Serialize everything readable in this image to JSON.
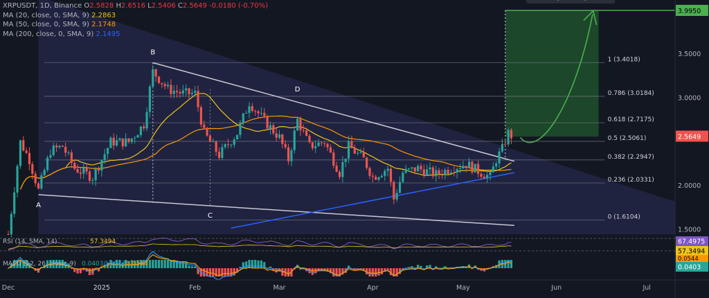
{
  "header": {
    "symbol_line": "XRPUSDT, 1D, Binance",
    "ohlc": [
      {
        "k": "O",
        "v": "2.5828"
      },
      {
        "k": "H",
        "v": "2.6516"
      },
      {
        "k": "L",
        "v": "2.5406"
      },
      {
        "k": "C",
        "v": "2.5649"
      }
    ],
    "change": "-0.0180 (-0.70%)",
    "change_color": "#f23645"
  },
  "ma": [
    {
      "label": "MA (20, close, 0, SMA, 9)",
      "value": "2.2863",
      "color": "#f0c419"
    },
    {
      "label": "MA (50, close, 0, SMA, 9)",
      "value": "2.1748",
      "color": "#ff9800"
    },
    {
      "label": "MA (200, close, 0, SMA, 9)",
      "value": "2.1495",
      "color": "#2962ff"
    }
  ],
  "measure_label": "1.3753 (53.63%) 13753",
  "colors": {
    "up": "#26a69a",
    "down": "#ef5350",
    "target": "#4caf50",
    "wedge": "#2a2e59",
    "rsi": "#7e57c2"
  },
  "chart_data": {
    "type": "candlestick",
    "y_ticks": [
      "3.9950",
      "3.5000",
      "3.0000",
      "2.5649",
      "2.0000",
      "1.5000"
    ],
    "y_tick_values": [
      3.995,
      3.5,
      3.0,
      2.5649,
      2.0,
      1.5
    ],
    "price_axis": {
      "min": 1.45,
      "max": 4.05
    },
    "x_ticks": [
      "Dec",
      "2025",
      "Feb",
      "Mar",
      "Apr",
      "May",
      "Jun",
      "Jul"
    ],
    "x_tick_days": [
      0,
      31,
      62,
      90,
      121,
      151,
      182,
      212
    ],
    "last_price": "2.5649",
    "target_price": "3.9950",
    "fib_levels": [
      {
        "label": "1 (3.4018)",
        "value": 3.4018
      },
      {
        "label": "0.786 (3.0184)",
        "value": 3.0184
      },
      {
        "label": "0.618 (2.7175)",
        "value": 2.7175
      },
      {
        "label": "0.5 (2.5061)",
        "value": 2.5061
      },
      {
        "label": "0.382 (2.2947)",
        "value": 2.2947
      },
      {
        "label": "0.236 (2.0331)",
        "value": 2.0331
      },
      {
        "label": "0 (1.6104)",
        "value": 1.6104
      }
    ],
    "points": [
      {
        "label": "A",
        "day": 10,
        "price": 1.9
      },
      {
        "label": "B",
        "day": 48,
        "price": 3.4
      },
      {
        "label": "C",
        "day": 67,
        "price": 1.78
      },
      {
        "label": "D",
        "day": 96,
        "price": 2.98
      }
    ],
    "rsi": {
      "label": "RSI (14, SMA, 14)",
      "value": "67.4975",
      "ma_value": "57.3494"
    },
    "macd": {
      "label": "MACD (12, 26, close, 9)",
      "hist": "0.0403",
      "macd": "0.0947",
      "signal": "0.0544"
    }
  }
}
